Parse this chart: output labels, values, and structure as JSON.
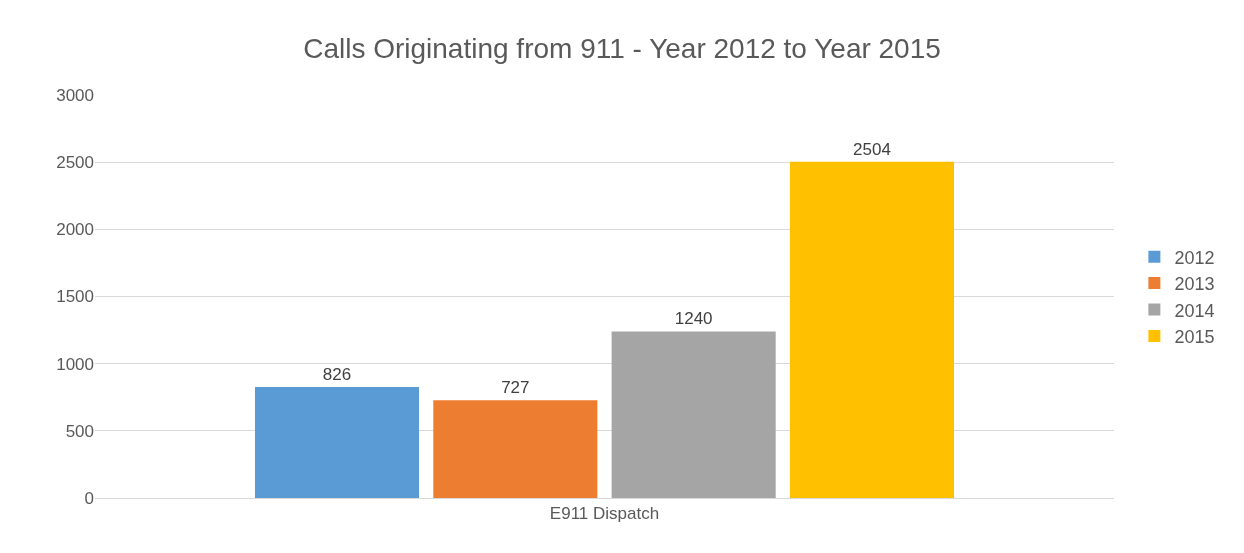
{
  "chart_data": {
    "type": "bar",
    "title": "Calls Originating from 911 - Year 2012 to Year 2015",
    "categories": [
      "E911 Dispatch"
    ],
    "series": [
      {
        "name": "2012",
        "color": "#5b9bd5",
        "values": [
          826
        ]
      },
      {
        "name": "2013",
        "color": "#ed7d31",
        "values": [
          727
        ]
      },
      {
        "name": "2014",
        "color": "#a5a5a5",
        "values": [
          1240
        ]
      },
      {
        "name": "2015",
        "color": "#ffc000",
        "values": [
          2504
        ]
      }
    ],
    "ylim": [
      0,
      3000
    ],
    "yticks": [
      0,
      500,
      1000,
      1500,
      2000,
      2500,
      3000
    ],
    "grid": "y",
    "legend": "right",
    "data_labels": true
  }
}
